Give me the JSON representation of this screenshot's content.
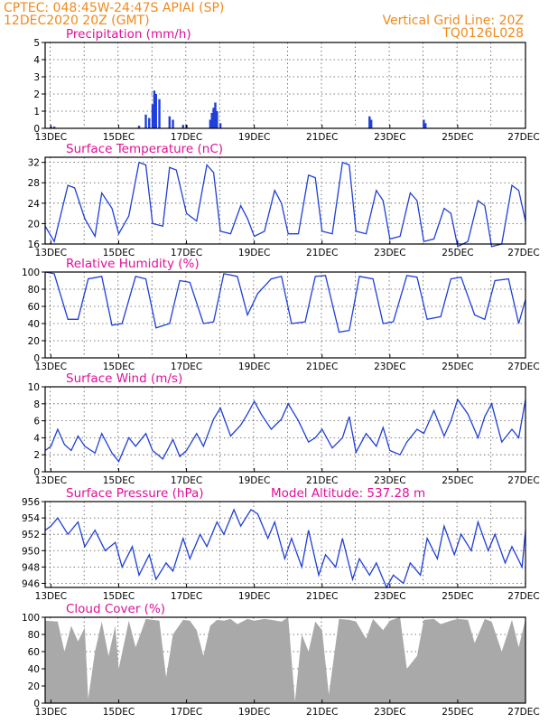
{
  "header": {
    "line1_left": "CPTEC:   048:45W-24:47S  APIAI (SP)",
    "line2_left": "12DEC2020 20Z (GMT)",
    "line1_right": "Vertical Grid Line: 20Z",
    "line2_right": "TQ0126L028"
  },
  "x_ticks": [
    "13DEC",
    "15DEC",
    "17DEC",
    "19DEC",
    "21DEC",
    "23DEC",
    "25DEC",
    "27DEC"
  ],
  "model_altitude": "Model Altitude: 537.28 m",
  "colors": {
    "series": "#1f3fd8",
    "bars": "#1f3fd8",
    "cloud": "#a9a9a9",
    "title": "#e0109a",
    "header": "#f08a1c"
  },
  "chart_data": [
    {
      "type": "bar",
      "title": "Precipitation (mm/h)",
      "ylim": [
        0,
        5
      ],
      "yticks": [
        0,
        1,
        2,
        3,
        4,
        5
      ],
      "x_range_days": [
        12.83,
        27.0
      ],
      "x": [
        13.0,
        13.1,
        15.6,
        15.8,
        15.9,
        16.0,
        16.05,
        16.1,
        16.2,
        16.5,
        16.6,
        16.9,
        17.0,
        17.7,
        17.75,
        17.8,
        17.85,
        17.9,
        18.0,
        22.4,
        22.45,
        24.0,
        24.05
      ],
      "values": [
        0.1,
        0.1,
        0.15,
        0.8,
        0.6,
        1.4,
        2.2,
        2.0,
        1.7,
        0.7,
        0.5,
        0.2,
        0.2,
        0.5,
        0.9,
        1.2,
        1.5,
        1.0,
        0.3,
        0.7,
        0.5,
        0.5,
        0.3
      ]
    },
    {
      "type": "line",
      "title": "Surface Temperature (nC)",
      "ylim": [
        16,
        33
      ],
      "yticks": [
        16,
        20,
        24,
        28,
        32
      ],
      "x_range_days": [
        12.83,
        27.0
      ],
      "x": [
        12.83,
        13.1,
        13.5,
        13.7,
        14.0,
        14.3,
        14.5,
        14.8,
        15.0,
        15.3,
        15.6,
        15.8,
        16.0,
        16.3,
        16.5,
        16.7,
        17.0,
        17.3,
        17.6,
        17.8,
        18.0,
        18.3,
        18.6,
        18.8,
        19.0,
        19.3,
        19.6,
        19.8,
        20.0,
        20.3,
        20.6,
        20.8,
        21.0,
        21.3,
        21.6,
        21.8,
        22.0,
        22.3,
        22.6,
        22.8,
        23.0,
        23.3,
        23.6,
        23.8,
        24.0,
        24.3,
        24.6,
        24.8,
        25.0,
        25.3,
        25.6,
        25.8,
        26.0,
        26.3,
        26.6,
        26.8,
        27.0
      ],
      "values": [
        19.5,
        16.5,
        27.5,
        27.0,
        21.0,
        17.5,
        26.0,
        23.0,
        18.0,
        21.5,
        32.0,
        31.5,
        20.0,
        19.5,
        31.0,
        30.5,
        22.0,
        20.5,
        31.5,
        30.0,
        18.5,
        18.0,
        23.5,
        21.0,
        17.5,
        18.5,
        26.5,
        24.0,
        18.0,
        18.0,
        29.5,
        29.0,
        18.5,
        18.0,
        32.0,
        31.5,
        18.5,
        18.0,
        26.5,
        24.5,
        17.0,
        17.5,
        26.0,
        24.5,
        16.5,
        17.0,
        23.0,
        22.0,
        15.5,
        16.5,
        24.5,
        23.5,
        15.5,
        16.0,
        27.5,
        26.5,
        20.5
      ]
    },
    {
      "type": "line",
      "title": "Relative Humidity (%)",
      "ylim": [
        0,
        100
      ],
      "yticks": [
        0,
        20,
        40,
        60,
        80,
        100
      ],
      "x_range_days": [
        12.83,
        27.0
      ],
      "x": [
        12.83,
        13.1,
        13.5,
        13.8,
        14.1,
        14.5,
        14.8,
        15.1,
        15.5,
        15.8,
        16.1,
        16.5,
        16.8,
        17.1,
        17.5,
        17.8,
        18.1,
        18.5,
        18.8,
        19.1,
        19.5,
        19.8,
        20.1,
        20.5,
        20.8,
        21.1,
        21.5,
        21.8,
        22.1,
        22.5,
        22.8,
        23.1,
        23.5,
        23.8,
        24.1,
        24.5,
        24.8,
        25.1,
        25.5,
        25.8,
        26.1,
        26.5,
        26.8,
        27.0
      ],
      "values": [
        100,
        98,
        45,
        45,
        92,
        95,
        38,
        40,
        95,
        92,
        35,
        40,
        90,
        88,
        40,
        42,
        98,
        95,
        50,
        75,
        92,
        95,
        40,
        42,
        95,
        96,
        30,
        32,
        95,
        92,
        40,
        42,
        96,
        94,
        45,
        48,
        92,
        94,
        50,
        45,
        90,
        92,
        40,
        68
      ]
    },
    {
      "type": "line",
      "title": "Surface Wind (m/s)",
      "ylim": [
        0,
        10
      ],
      "yticks": [
        0,
        2,
        4,
        6,
        8,
        10
      ],
      "x_range_days": [
        12.83,
        27.0
      ],
      "x": [
        12.83,
        13.0,
        13.2,
        13.4,
        13.6,
        13.8,
        14.0,
        14.3,
        14.5,
        14.8,
        15.0,
        15.3,
        15.5,
        15.8,
        16.0,
        16.3,
        16.6,
        16.8,
        17.0,
        17.3,
        17.5,
        17.8,
        18.0,
        18.3,
        18.6,
        18.8,
        19.0,
        19.2,
        19.5,
        19.8,
        20.0,
        20.3,
        20.6,
        20.8,
        21.0,
        21.3,
        21.6,
        21.8,
        22.0,
        22.3,
        22.6,
        22.8,
        23.0,
        23.3,
        23.5,
        23.8,
        24.0,
        24.3,
        24.6,
        24.8,
        25.0,
        25.3,
        25.6,
        25.8,
        26.0,
        26.3,
        26.6,
        26.8,
        27.0
      ],
      "values": [
        2.5,
        3.0,
        5.0,
        3.2,
        2.5,
        4.2,
        3.0,
        2.2,
        4.5,
        2.2,
        1.2,
        4.0,
        3.0,
        4.5,
        2.5,
        1.5,
        3.8,
        1.8,
        2.5,
        4.5,
        3.0,
        6.2,
        7.5,
        4.2,
        5.5,
        6.8,
        8.3,
        6.8,
        5.0,
        6.2,
        8.0,
        6.0,
        3.5,
        4.0,
        5.0,
        2.8,
        4.0,
        6.5,
        2.3,
        4.5,
        3.0,
        5.2,
        2.5,
        2.0,
        3.5,
        5.0,
        4.5,
        7.2,
        4.2,
        6.0,
        8.5,
        6.8,
        4.0,
        6.5,
        8.0,
        3.5,
        5.0,
        4.0,
        8.5
      ]
    },
    {
      "type": "line",
      "title": "Surface Pressure (hPa)",
      "ylim": [
        945.5,
        956
      ],
      "yticks": [
        946,
        948,
        950,
        952,
        954,
        956
      ],
      "x_range_days": [
        12.83,
        27.0
      ],
      "x": [
        12.83,
        13.0,
        13.2,
        13.5,
        13.8,
        14.0,
        14.3,
        14.6,
        14.9,
        15.1,
        15.4,
        15.6,
        15.9,
        16.1,
        16.4,
        16.6,
        16.9,
        17.1,
        17.4,
        17.6,
        17.9,
        18.1,
        18.4,
        18.6,
        18.9,
        19.1,
        19.4,
        19.6,
        19.9,
        20.1,
        20.4,
        20.6,
        20.9,
        21.1,
        21.4,
        21.6,
        21.9,
        22.1,
        22.4,
        22.6,
        22.9,
        23.1,
        23.4,
        23.6,
        23.9,
        24.1,
        24.4,
        24.6,
        24.9,
        25.1,
        25.4,
        25.6,
        25.9,
        26.1,
        26.4,
        26.6,
        26.9,
        27.0
      ],
      "values": [
        952.5,
        953.0,
        954.0,
        952.0,
        953.5,
        950.5,
        952.5,
        950.0,
        951.0,
        948.0,
        950.5,
        947.0,
        949.5,
        946.5,
        948.5,
        947.5,
        951.5,
        949.0,
        952.0,
        950.5,
        953.5,
        952.0,
        955.0,
        953.0,
        955.0,
        954.5,
        951.5,
        953.5,
        949.0,
        951.5,
        948.0,
        952.5,
        947.0,
        949.5,
        948.0,
        951.5,
        946.5,
        949.0,
        947.0,
        948.5,
        945.5,
        947.0,
        946.0,
        948.5,
        947.0,
        951.5,
        949.0,
        953.0,
        949.5,
        952.0,
        950.0,
        953.5,
        950.0,
        952.0,
        948.5,
        950.5,
        948.0,
        952.5
      ]
    },
    {
      "type": "area",
      "title": "Cloud Cover (%)",
      "ylim": [
        0,
        100
      ],
      "yticks": [
        0,
        20,
        40,
        60,
        80,
        100
      ],
      "x_range_days": [
        12.83,
        27.0
      ],
      "x": [
        12.83,
        13.2,
        13.4,
        13.6,
        13.8,
        14.0,
        14.1,
        14.3,
        14.5,
        14.7,
        14.9,
        15.0,
        15.3,
        15.5,
        15.8,
        16.0,
        16.2,
        16.4,
        16.6,
        16.9,
        17.1,
        17.3,
        17.5,
        17.7,
        17.9,
        18.1,
        18.3,
        18.5,
        18.8,
        19.0,
        19.3,
        19.5,
        19.8,
        20.0,
        20.2,
        20.4,
        20.6,
        20.8,
        21.0,
        21.2,
        21.5,
        21.8,
        22.0,
        22.3,
        22.5,
        22.8,
        23.0,
        23.3,
        23.5,
        23.8,
        24.0,
        24.3,
        24.5,
        24.8,
        25.0,
        25.3,
        25.5,
        25.8,
        26.0,
        26.3,
        26.6,
        26.8,
        27.0
      ],
      "values": [
        96,
        95,
        60,
        90,
        72,
        88,
        5,
        60,
        95,
        55,
        90,
        40,
        96,
        65,
        98,
        97,
        96,
        30,
        80,
        97,
        96,
        85,
        55,
        90,
        97,
        96,
        98,
        92,
        98,
        96,
        98,
        97,
        95,
        100,
        2,
        80,
        60,
        95,
        85,
        10,
        98,
        97,
        95,
        75,
        98,
        85,
        96,
        100,
        40,
        55,
        97,
        98,
        92,
        96,
        98,
        97,
        70,
        98,
        95,
        60,
        97,
        65,
        98
      ]
    }
  ],
  "panels": {
    "precip": {
      "title": "Precipitation (mm/h)"
    },
    "temp": {
      "title": "Surface Temperature (nC)"
    },
    "rh": {
      "title": "Relative Humidity (%)"
    },
    "wind": {
      "title": "Surface Wind (m/s)"
    },
    "pressure": {
      "title": "Surface Pressure (hPa)"
    },
    "cloud": {
      "title": "Cloud Cover (%)"
    }
  }
}
